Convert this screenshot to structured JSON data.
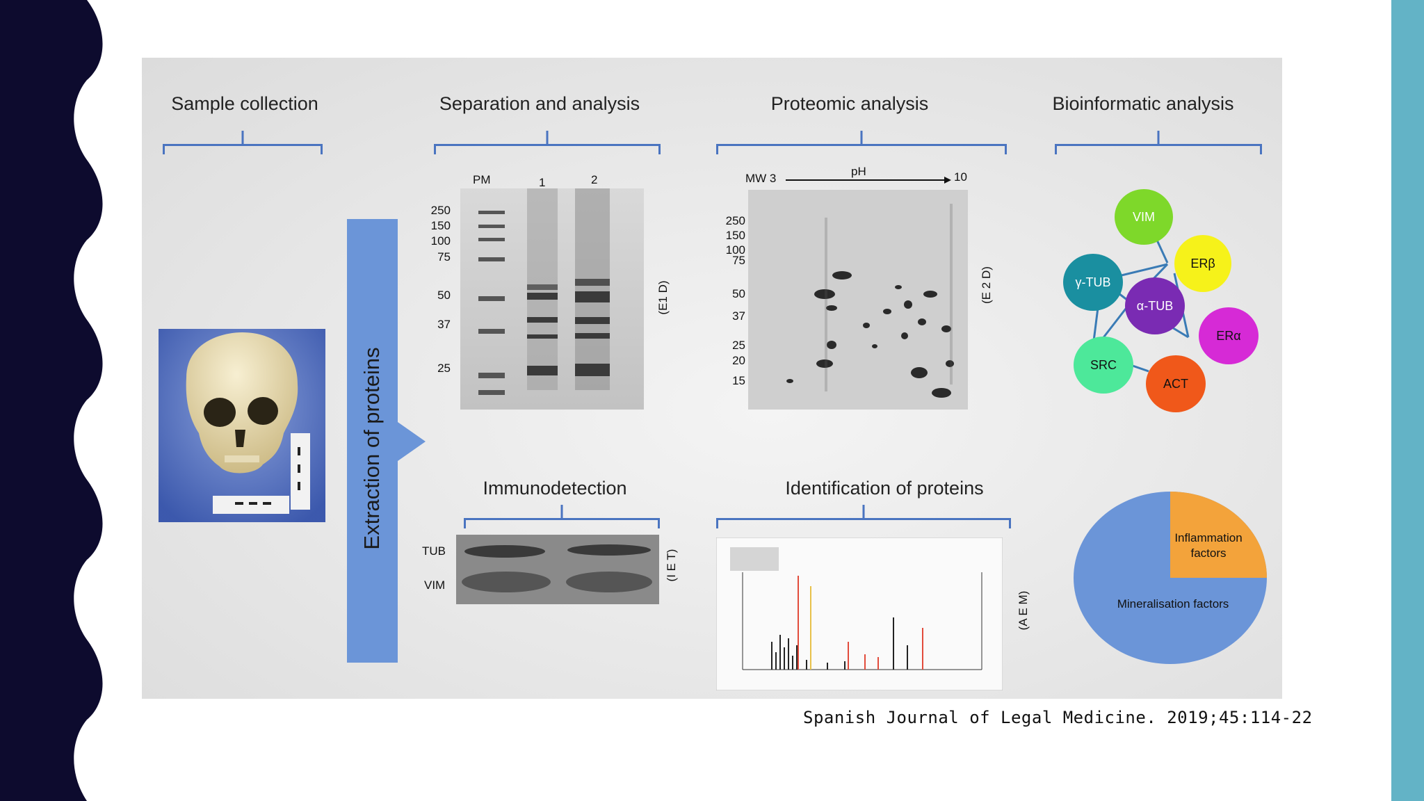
{
  "colors": {
    "left_band": "#0d0b2e",
    "right_band": "#63b3c6",
    "bracket": "#4a74c0",
    "arrow": "#6b95d8",
    "photo_bg": "#4c6fc8"
  },
  "sections": {
    "sample_collection": "Sample collection",
    "separation": "Separation and analysis",
    "proteomic": "Proteomic analysis",
    "bioinformatic": "Bioinformatic analysis",
    "immunodetection": "Immunodetection",
    "identification": "Identification of proteins"
  },
  "arrow_label": "Extraction of proteins",
  "gel1": {
    "lane_labels": [
      "PM",
      "1",
      "2"
    ],
    "mw_markers": [
      "250",
      "150",
      "100",
      "75",
      "50",
      "37",
      "25"
    ],
    "side_label": "(E1 D)"
  },
  "gel2": {
    "mw_label": "MW 3",
    "ph_label": "pH",
    "ph_end": "10",
    "mw_markers": [
      "250",
      "150",
      "100",
      "75",
      "50",
      "37",
      "25",
      "20",
      "15"
    ],
    "side_label": "(E 2 D)"
  },
  "immuno": {
    "band_labels": [
      "TUB",
      "VIM"
    ],
    "side_label": "(I E T)"
  },
  "spectrum": {
    "side_label": "(A E M)"
  },
  "network": {
    "nodes": [
      {
        "id": "vim",
        "label": "VIM",
        "color": "#7ed82a"
      },
      {
        "id": "erb",
        "label": "ERβ",
        "color": "#f6f21a"
      },
      {
        "id": "gtub",
        "label": "γ-TUB",
        "color": "#1a8fa0"
      },
      {
        "id": "atub",
        "label": "α-TUB",
        "color": "#7a2bb3"
      },
      {
        "id": "era",
        "label": "ERα",
        "color": "#d62ad6"
      },
      {
        "id": "src",
        "label": "SRC",
        "color": "#4de89a"
      },
      {
        "id": "act",
        "label": "ACT",
        "color": "#f0581a"
      }
    ]
  },
  "pie": {
    "slices": [
      {
        "label": "Inflammation factors",
        "line1": "Inflammation",
        "line2": "factors",
        "fraction": 0.25,
        "color": "#f3a33b"
      },
      {
        "label": "Mineralisation factors",
        "fraction": 0.75,
        "color": "#6b95d8"
      }
    ]
  },
  "citation": "Spanish Journal of Legal Medicine. 2019;45:114-22"
}
